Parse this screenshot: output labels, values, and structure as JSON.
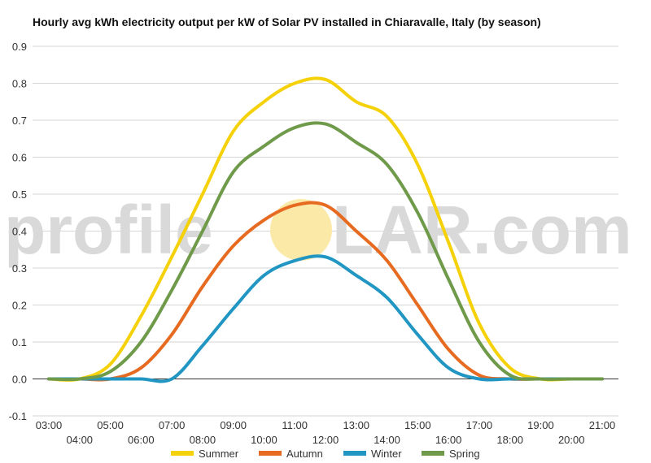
{
  "chart_data": {
    "type": "line",
    "title": "Hourly avg kWh electricity output per kW of Solar PV installed in Chiaravalle, Italy (by season)",
    "xlabel": "",
    "ylabel": "",
    "ylim": [
      -0.1,
      0.9
    ],
    "yticks": [
      "-0.1",
      "0.0",
      "0.1",
      "0.2",
      "0.3",
      "0.4",
      "0.5",
      "0.6",
      "0.7",
      "0.8",
      "0.9"
    ],
    "x": [
      "03:00",
      "04:00",
      "05:00",
      "06:00",
      "07:00",
      "08:00",
      "09:00",
      "10:00",
      "11:00",
      "12:00",
      "13:00",
      "14:00",
      "15:00",
      "16:00",
      "17:00",
      "18:00",
      "19:00",
      "20:00",
      "21:00"
    ],
    "grid": true,
    "legend_position": "bottom",
    "series": [
      {
        "name": "Summer",
        "color": "#f5d10a",
        "values": [
          0.0,
          0.0,
          0.04,
          0.17,
          0.33,
          0.5,
          0.67,
          0.75,
          0.8,
          0.81,
          0.75,
          0.71,
          0.58,
          0.37,
          0.15,
          0.03,
          0.0,
          0.0,
          0.0
        ]
      },
      {
        "name": "Autumn",
        "color": "#e66b21",
        "values": [
          0.0,
          0.0,
          0.0,
          0.03,
          0.12,
          0.25,
          0.36,
          0.43,
          0.47,
          0.47,
          0.4,
          0.32,
          0.2,
          0.08,
          0.01,
          0.0,
          0.0,
          0.0,
          0.0
        ]
      },
      {
        "name": "Winter",
        "color": "#2196c3",
        "values": [
          0.0,
          0.0,
          0.0,
          0.0,
          0.0,
          0.09,
          0.19,
          0.28,
          0.32,
          0.33,
          0.28,
          0.22,
          0.12,
          0.03,
          0.0,
          0.0,
          0.0,
          0.0,
          0.0
        ]
      },
      {
        "name": "Spring",
        "color": "#6e9a4a",
        "values": [
          0.0,
          0.0,
          0.02,
          0.1,
          0.24,
          0.4,
          0.56,
          0.63,
          0.68,
          0.69,
          0.64,
          0.58,
          0.45,
          0.27,
          0.1,
          0.01,
          0.0,
          0.0,
          0.0
        ]
      }
    ]
  },
  "watermark": {
    "left": "profile",
    "right": "LAR.com",
    "sun_color": "#fbe9a8"
  }
}
